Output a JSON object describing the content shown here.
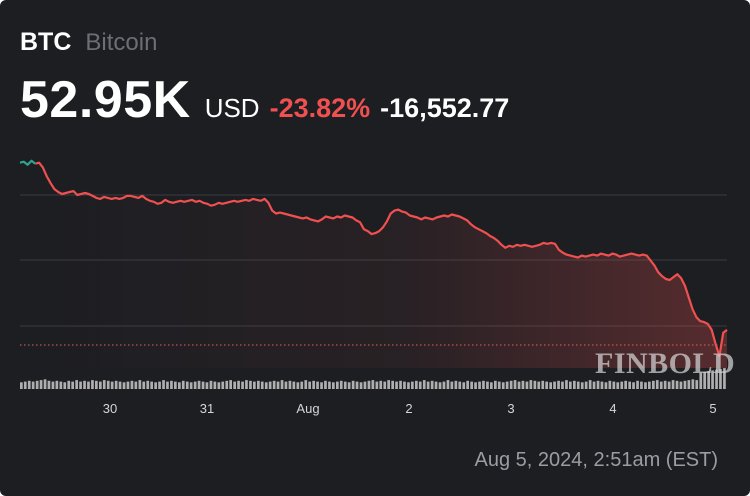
{
  "header": {
    "ticker": "BTC",
    "name": "Bitcoin",
    "price": "52.95K",
    "currency": "USD",
    "change_percent": "-23.82%",
    "change_value": "-16,552.77"
  },
  "timestamp": "Aug 5, 2024, 2:51am (EST)",
  "watermark": "FINBOLD",
  "colors": {
    "background": "#1c1e22",
    "line": "#f0504f",
    "line_start": "#2fa38c",
    "gridline": "#3a3c42",
    "volume": "#c9c9c9"
  },
  "chart_data": {
    "type": "line",
    "x_tick_labels": [
      "30",
      "31",
      "Aug",
      "2",
      "3",
      "4",
      "5"
    ],
    "series": [
      {
        "values": [
          70.0,
          70.1,
          69.8,
          70.2,
          69.9,
          70.0,
          69.5,
          68.6,
          67.9,
          67.3,
          67.0,
          66.8,
          66.9,
          67.0,
          67.1,
          66.7,
          66.8,
          66.9,
          66.8,
          66.6,
          66.4,
          66.3,
          66.5,
          66.4,
          66.3,
          66.4,
          66.3,
          66.4,
          66.6,
          66.6,
          66.5,
          66.4,
          66.6,
          66.3,
          66.1,
          66.0,
          65.8,
          65.9,
          66.2,
          66.0,
          65.9,
          66.0,
          66.1,
          66.0,
          66.1,
          66.2,
          66.0,
          66.1,
          65.9,
          65.8,
          65.6,
          65.7,
          65.9,
          65.8,
          65.9,
          66.0,
          66.1,
          66.0,
          66.1,
          66.2,
          66.1,
          66.3,
          66.2,
          66.1,
          66.3,
          65.9,
          65.1,
          64.8,
          64.9,
          64.8,
          64.7,
          64.6,
          64.5,
          64.4,
          64.3,
          64.4,
          64.2,
          64.1,
          64.0,
          64.2,
          64.5,
          64.4,
          64.3,
          64.5,
          64.4,
          64.6,
          64.5,
          64.4,
          64.1,
          63.9,
          63.2,
          63.0,
          62.7,
          62.8,
          63.0,
          63.4,
          64.0,
          64.8,
          65.1,
          65.2,
          65.0,
          64.9,
          64.6,
          64.5,
          64.4,
          64.2,
          64.4,
          64.3,
          64.2,
          64.4,
          64.5,
          64.6,
          64.5,
          64.7,
          64.6,
          64.5,
          64.3,
          64.1,
          63.7,
          63.4,
          63.2,
          63.0,
          62.8,
          62.5,
          62.3,
          62.0,
          61.6,
          61.3,
          61.5,
          61.4,
          61.6,
          61.5,
          61.6,
          61.5,
          61.4,
          61.5,
          61.6,
          61.8,
          61.7,
          61.8,
          61.7,
          61.1,
          60.8,
          60.6,
          60.5,
          60.4,
          60.3,
          60.5,
          60.4,
          60.5,
          60.6,
          60.5,
          60.7,
          60.6,
          60.5,
          60.7,
          60.6,
          60.4,
          60.5,
          60.6,
          60.7,
          60.6,
          60.5,
          60.6,
          60.5,
          60.0,
          59.5,
          58.8,
          58.4,
          58.1,
          58.0,
          58.3,
          58.6,
          58.2,
          57.4,
          56.2,
          55.0,
          54.2,
          53.8,
          53.7,
          53.5,
          52.9,
          51.5,
          50.2,
          52.6,
          52.9
        ],
        "y_min": 49.0,
        "y_max": 71.3
      }
    ],
    "volume_relative": [
      0.45,
      0.5,
      0.55,
      0.5,
      0.55,
      0.6,
      0.65,
      0.55,
      0.5,
      0.55,
      0.5,
      0.45,
      0.55,
      0.5,
      0.6,
      0.5,
      0.55,
      0.5,
      0.6,
      0.55,
      0.5,
      0.6,
      0.55,
      0.5,
      0.55,
      0.5,
      0.45,
      0.5,
      0.55,
      0.5,
      0.6,
      0.5,
      0.55,
      0.5,
      0.45,
      0.5,
      0.6,
      0.5,
      0.55,
      0.5,
      0.45,
      0.55,
      0.5,
      0.45,
      0.5,
      0.55,
      0.5,
      0.45,
      0.55,
      0.5,
      0.45,
      0.5,
      0.55,
      0.6,
      0.5,
      0.55,
      0.5,
      0.6,
      0.55,
      0.5,
      0.55,
      0.5,
      0.45,
      0.5,
      0.55,
      0.5,
      0.6,
      0.5,
      0.55,
      0.5,
      0.45,
      0.5,
      0.6,
      0.5,
      0.55,
      0.5,
      0.45,
      0.55,
      0.5,
      0.45,
      0.5,
      0.55,
      0.5,
      0.45,
      0.55,
      0.5,
      0.45,
      0.5,
      0.55,
      0.6,
      0.5,
      0.55,
      0.5,
      0.6,
      0.55,
      0.5,
      0.55,
      0.5,
      0.45,
      0.5,
      0.55,
      0.5,
      0.6,
      0.5,
      0.55,
      0.5,
      0.45,
      0.5,
      0.6,
      0.5,
      0.55,
      0.5,
      0.45,
      0.55,
      0.5,
      0.45,
      0.5,
      0.55,
      0.5,
      0.45,
      0.55,
      0.5,
      0.45,
      0.5,
      0.55,
      0.6,
      0.5,
      0.55,
      0.5,
      0.6,
      0.55,
      0.5,
      0.55,
      0.5,
      0.45,
      0.5,
      0.55,
      0.5,
      0.6,
      0.5,
      0.55,
      0.5,
      0.45,
      0.5,
      0.6,
      0.5,
      0.55,
      0.5,
      0.45,
      0.55,
      0.5,
      0.45,
      0.5,
      0.55,
      0.5,
      0.45,
      0.55,
      0.5,
      0.45,
      0.5,
      0.55,
      0.6,
      0.5,
      0.55,
      0.5,
      0.6,
      0.55,
      0.5,
      0.55,
      0.6,
      0.65,
      0.6,
      0.7,
      0.75,
      0.8,
      0.85,
      0.9,
      0.95,
      1.0
    ],
    "grid": true,
    "legend": "none"
  }
}
